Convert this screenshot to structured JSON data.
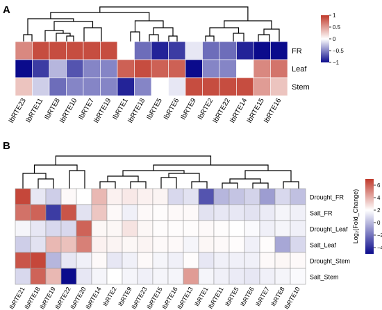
{
  "chart_data": [
    {
      "type": "heatmap",
      "panel_label": "A",
      "rows": [
        "FR",
        "Leaf",
        "Stem"
      ],
      "columns": [
        "IbRTE23",
        "IbRTE11",
        "IbRTE8",
        "IbRTE10",
        "IbRTE7",
        "IbRTE19",
        "IbRTE1",
        "IbRTE18",
        "IbRTE5",
        "IbRTE6",
        "IbRTE9",
        "IbRTE2",
        "IbRTE22",
        "IbRTE14",
        "IbRTE15",
        "IbRTE16"
      ],
      "values": [
        [
          0.6,
          0.9,
          0.9,
          0.9,
          0.9,
          0.9,
          0.0,
          -0.6,
          -0.9,
          -0.8,
          -0.1,
          -0.6,
          -0.6,
          -0.9,
          -1.0,
          -1.0
        ],
        [
          -1.0,
          -0.8,
          -0.3,
          -0.7,
          -0.5,
          -0.5,
          0.8,
          0.9,
          0.8,
          0.8,
          -1.0,
          -0.5,
          -0.5,
          0.0,
          0.6,
          0.7
        ],
        [
          0.3,
          -0.2,
          -0.6,
          -0.5,
          -0.5,
          -0.5,
          -0.9,
          -0.5,
          0.0,
          -0.1,
          0.9,
          0.9,
          0.9,
          0.9,
          0.5,
          0.3
        ]
      ],
      "colorbar": {
        "ticks": [
          1,
          0.5,
          0,
          -0.5,
          -1
        ],
        "tick_labels": [
          "1",
          "0.5",
          "0",
          "−0.5",
          "−1"
        ],
        "range": [
          -1,
          1
        ]
      },
      "colors": {
        "low": "#0b0b8c",
        "mid": "#ffffff",
        "high": "#c0392b"
      }
    },
    {
      "type": "heatmap",
      "panel_label": "B",
      "rows": [
        "Drought_FR",
        "Salt_FR",
        "Drought_Leaf",
        "Salt_Leaf",
        "Drought_Stem",
        "Salt_Stem"
      ],
      "columns": [
        "IbRTE21",
        "IbRTE18",
        "IbRTE19",
        "IbRTE22",
        "IbRTE20",
        "IbRTE14",
        "IbRTE2",
        "IbRTE9",
        "IbRTE23",
        "IbRTE15",
        "IbRTE16",
        "IbRTE13",
        "IbRTE1",
        "IbRTE11",
        "IbRTE5",
        "IbRTE6",
        "IbRTE7",
        "IbRTE8",
        "IbRTE10"
      ],
      "values": [
        [
          6.5,
          -0.5,
          -1.0,
          0.2,
          0.0,
          2.5,
          0.5,
          0.8,
          0.5,
          0.4,
          -0.8,
          -0.6,
          -3.5,
          -1.5,
          -1.2,
          -0.9,
          -2.0,
          -0.8,
          -1.3
        ],
        [
          5.0,
          5.5,
          -4.0,
          6.0,
          -0.6,
          2.0,
          0.2,
          -0.3,
          0.2,
          0.1,
          0.2,
          0.2,
          -0.6,
          -0.5,
          -0.5,
          -0.6,
          -0.4,
          -0.2,
          -0.3
        ],
        [
          -0.2,
          -0.5,
          -0.8,
          -0.8,
          5.5,
          0.3,
          0.3,
          1.0,
          0.3,
          0.1,
          0.1,
          0.1,
          0.2,
          0.1,
          0.0,
          -0.1,
          -0.3,
          -0.2,
          -0.3
        ],
        [
          -1.0,
          -0.6,
          2.5,
          2.2,
          4.5,
          0.5,
          0.4,
          0.3,
          0.4,
          0.2,
          0.2,
          -0.2,
          0.3,
          0.2,
          0.1,
          -0.3,
          0.1,
          -1.8,
          -0.8
        ],
        [
          6.0,
          6.5,
          -1.5,
          -0.5,
          -0.3,
          0.2,
          -0.5,
          -0.3,
          0.2,
          -0.2,
          -0.3,
          0.1,
          -0.5,
          -0.3,
          -0.3,
          -0.3,
          0.2,
          0.3,
          0.2
        ],
        [
          -0.8,
          5.5,
          2.5,
          -5.0,
          -0.5,
          -0.2,
          0.0,
          -0.2,
          -0.3,
          -0.2,
          -0.2,
          3.5,
          -0.2,
          -0.3,
          -0.4,
          -0.5,
          -0.3,
          -0.2,
          -0.1
        ]
      ],
      "colorbar": {
        "ticks": [
          6,
          4,
          2,
          0,
          -2,
          -4
        ],
        "tick_labels": [
          "6",
          "4",
          "2",
          "0",
          "−2",
          "−4"
        ],
        "range": [
          -5,
          7
        ]
      },
      "colorbar_label": "Log₂(Fold_Change)",
      "colors": {
        "low": "#0b0b8c",
        "mid": "#ffffff",
        "high": "#c0392b"
      }
    }
  ]
}
